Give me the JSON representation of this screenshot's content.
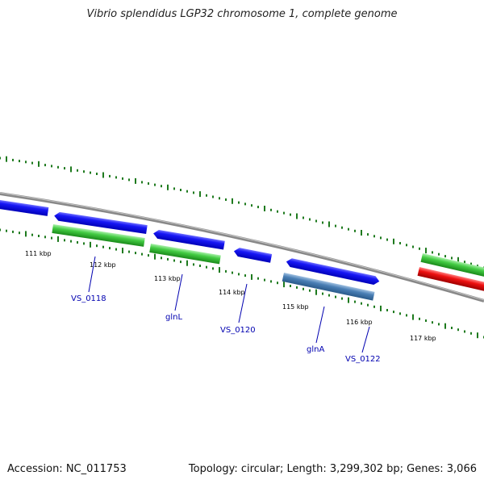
{
  "title": "Vibrio splendidus LGP32 chromosome 1, complete genome",
  "footer": {
    "accession": "Accession: NC_011753",
    "summary": "Topology: circular; Length: 3,299,302 bp; Genes: 3,066"
  },
  "ticks": [
    "111 kbp",
    "112 kbp",
    "113 kbp",
    "114 kbp",
    "115 kbp",
    "116 kbp",
    "117 kbp"
  ],
  "gene_labels": [
    "VS_0118",
    "glnL",
    "VS_0120",
    "glnA",
    "VS_0122"
  ],
  "colors": {
    "backbone": "#888888",
    "forward_cds": "#1010f0",
    "reverse_cds": "#3bcc3b",
    "rna": "#4a7fb5",
    "highlight": "#ee1010",
    "ticks": "#1e7a1e",
    "label_text": "#0000b0"
  }
}
